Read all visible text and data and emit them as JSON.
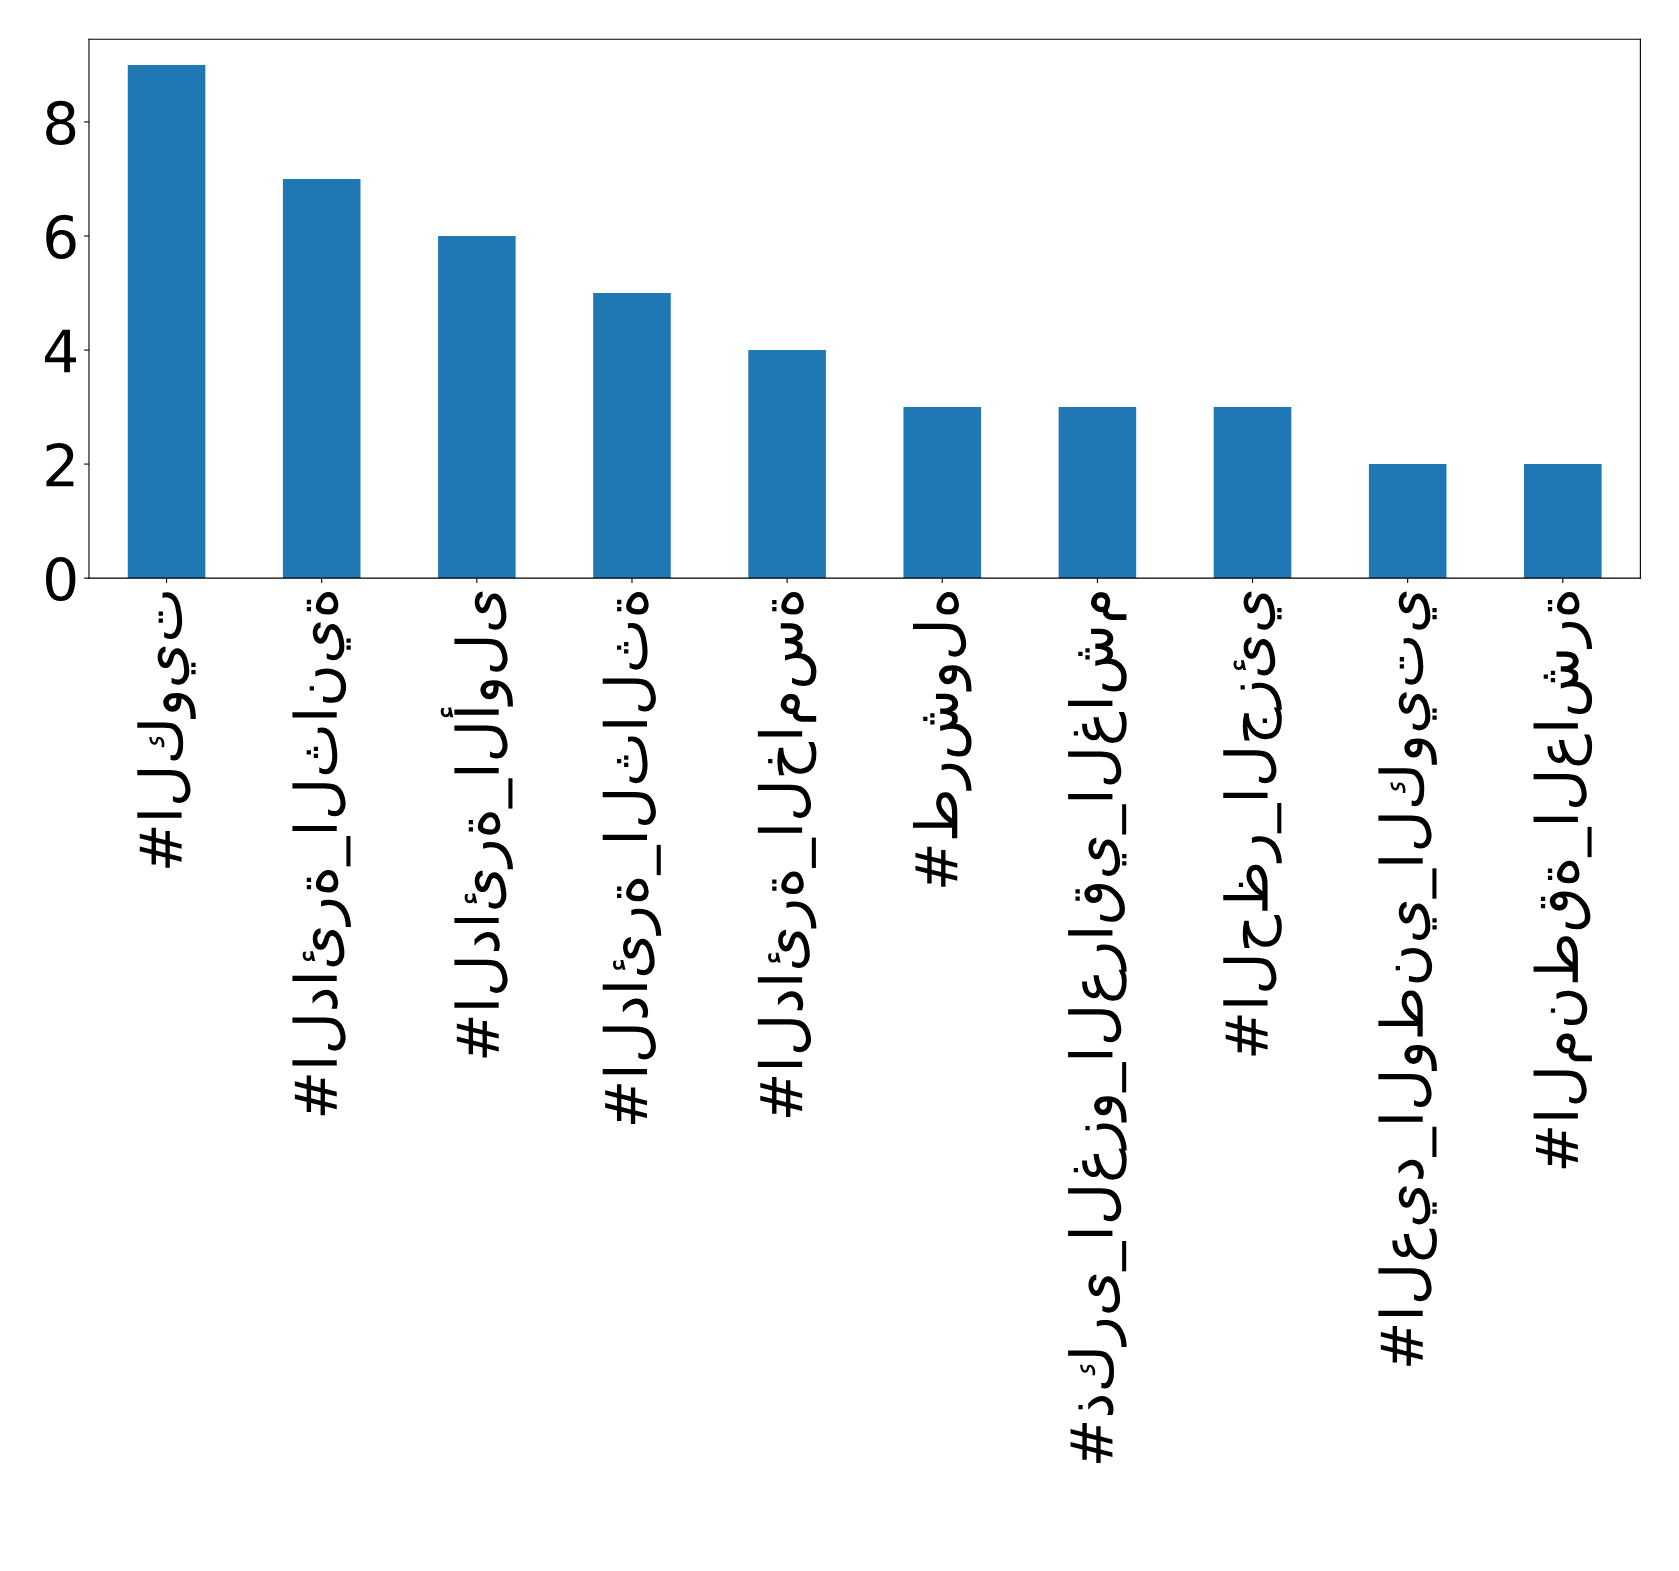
{
  "chart_data": {
    "type": "bar",
    "categories": [
      "#الكويت",
      "#الدائرة_الثانية",
      "#الدائرة_الأولى",
      "#الدائرة_الثالثة",
      "#الدائرة_الخامسة",
      "#طرشوله",
      "#ذكرى_الغزو_العراقي_الغاشم",
      "#الحظر_الجزئي",
      "#العيد_الوطني_الكويتي",
      "#المنطقة_العاشرة"
    ],
    "values": [
      9,
      7,
      6,
      5,
      4,
      3,
      3,
      3,
      2,
      2
    ],
    "color": "#1f77b4",
    "ylim": [
      0,
      9.45
    ],
    "yticks": [
      0,
      2,
      4,
      6,
      8
    ],
    "grid": false,
    "legend": false
  }
}
